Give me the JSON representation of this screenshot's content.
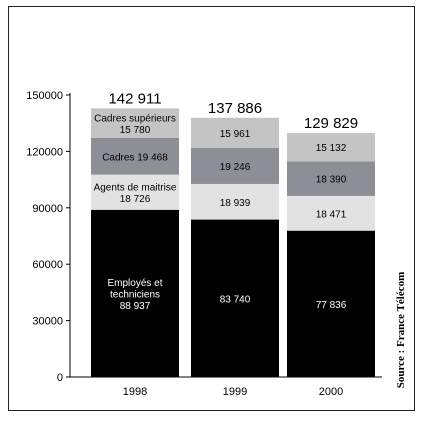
{
  "chart_data": {
    "type": "bar",
    "stacked": true,
    "categories": [
      "1998",
      "1999",
      "2000"
    ],
    "totals": [
      "142 911",
      "137 886",
      "129 829"
    ],
    "ylim": [
      0,
      150000
    ],
    "yticks": [
      "0",
      "30000",
      "60000",
      "90000",
      "120000",
      "150000"
    ],
    "grid": false,
    "source": "Source : France Télécom",
    "series": [
      {
        "name": "Employés et techniciens",
        "name_lines": [
          "Employés et",
          "techniciens"
        ],
        "values": [
          88937,
          83740,
          77836
        ],
        "labels": [
          "88 937",
          "83 740",
          "77 836"
        ],
        "named_on": [
          0
        ],
        "color": "#000000",
        "text_color": "#ffffff"
      },
      {
        "name": "Agents de maitrise",
        "name_lines": [
          "Agents de maitrise"
        ],
        "values": [
          18726,
          18939,
          18471
        ],
        "labels": [
          "18 726",
          "18 939",
          "18 471"
        ],
        "named_on": [
          0
        ],
        "color": "#e2e2e2",
        "text_color": "#000000"
      },
      {
        "name": "Cadres",
        "name_lines": [
          "Cadres"
        ],
        "values": [
          19468,
          19246,
          18390
        ],
        "labels": [
          "19 468",
          "19 246",
          "18 390"
        ],
        "named_on": [
          0
        ],
        "inline_name": true,
        "color": "#8e8e97",
        "text_color": "#000000"
      },
      {
        "name": "Cadres supérieurs",
        "name_lines": [
          "Cadres supérieurs"
        ],
        "values": [
          15780,
          15961,
          15132
        ],
        "labels": [
          "15 780",
          "15 961",
          "15 132"
        ],
        "named_on": [
          0
        ],
        "color": "#c4c4c4",
        "text_color": "#000000"
      }
    ]
  }
}
